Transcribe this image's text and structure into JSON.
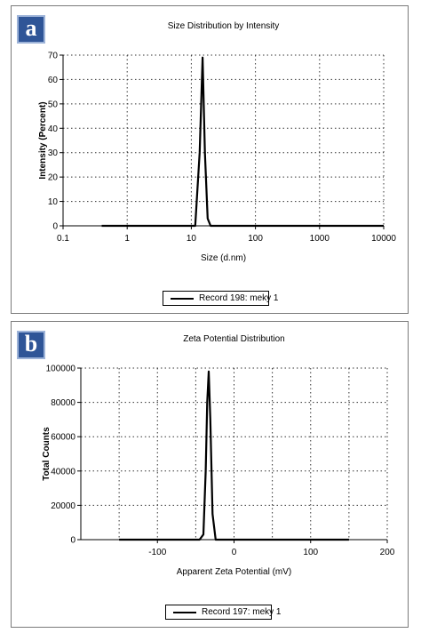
{
  "chart_data": [
    {
      "panel_label": "a",
      "type": "line",
      "title": "Size Distribution by Intensity",
      "xlabel": "Size (d.nm)",
      "ylabel": "Intensity (Percent)",
      "x_scale": "log",
      "xlim": [
        0.1,
        10000
      ],
      "ylim": [
        0,
        70
      ],
      "x_ticks": [
        0.1,
        1,
        10,
        100,
        1000,
        10000
      ],
      "x_tick_labels": [
        "0.1",
        "1",
        "10",
        "100",
        "1000",
        "10000"
      ],
      "y_ticks": [
        0,
        10,
        20,
        30,
        40,
        50,
        60,
        70
      ],
      "y_tick_labels": [
        "0",
        "10",
        "20",
        "30",
        "40",
        "50",
        "60",
        "70"
      ],
      "grid": true,
      "legend_position": "bottom-center",
      "series": [
        {
          "name": "Record 198: meky 1",
          "color": "#000000",
          "x": [
            0.4,
            8,
            11.5,
            13.5,
            15,
            16.3,
            18,
            20,
            25,
            100,
            1000,
            10000
          ],
          "y": [
            0,
            0,
            0,
            30,
            69,
            30,
            3,
            0,
            0,
            0,
            0,
            0
          ]
        }
      ]
    },
    {
      "panel_label": "b",
      "type": "line",
      "title": "Zeta Potential Distribution",
      "xlabel": "Apparent Zeta Potential (mV)",
      "ylabel": "Total Counts",
      "x_scale": "linear",
      "xlim": [
        -200,
        200
      ],
      "ylim": [
        0,
        100000
      ],
      "x_ticks": [
        -100,
        0,
        100,
        200
      ],
      "x_tick_labels": [
        "-100",
        "0",
        "100",
        "200"
      ],
      "x_grid_lines": [
        -150,
        -100,
        -50,
        0,
        50,
        100,
        150,
        200
      ],
      "y_ticks": [
        0,
        20000,
        40000,
        60000,
        80000,
        100000
      ],
      "y_tick_labels": [
        "0",
        "20000",
        "40000",
        "60000",
        "80000",
        "100000"
      ],
      "grid": true,
      "legend_position": "bottom-center",
      "series": [
        {
          "name": "Record 197: meky 1",
          "color": "#000000",
          "x": [
            -150,
            -45,
            -40,
            -37,
            -35,
            -33,
            -31,
            -28,
            -24,
            150
          ],
          "y": [
            0,
            0,
            3000,
            40000,
            80000,
            98000,
            70000,
            15000,
            0,
            0
          ]
        }
      ]
    }
  ]
}
